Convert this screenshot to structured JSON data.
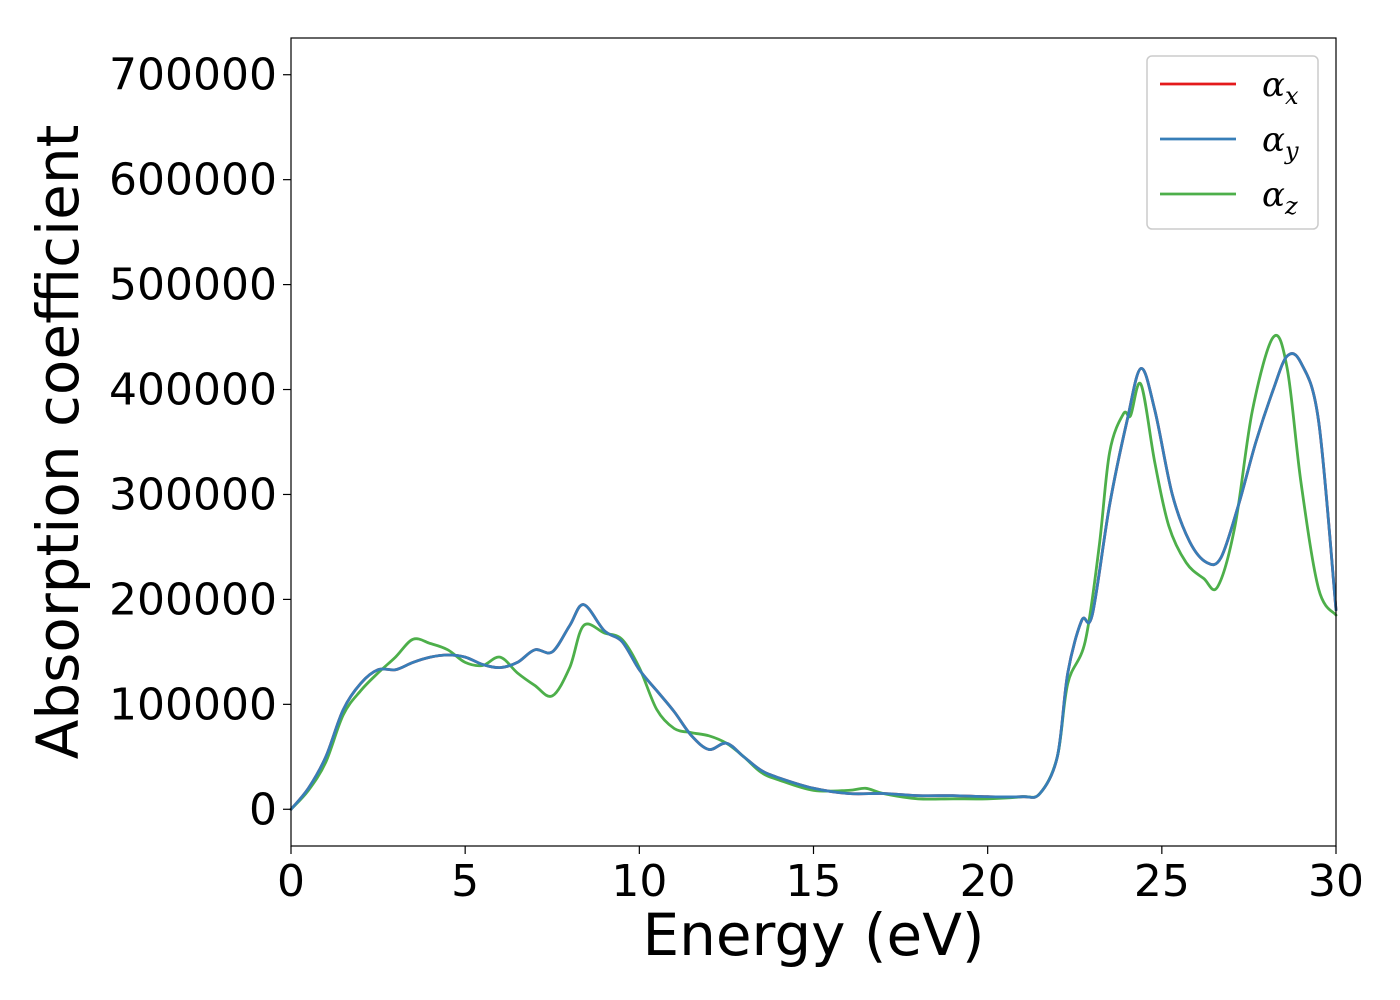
{
  "chart_data": {
    "type": "line",
    "title": "",
    "xlabel": "Energy (eV)",
    "ylabel": "Absorption coefficient",
    "xlim": [
      0,
      30
    ],
    "ylim": [
      -35000,
      735000
    ],
    "xticks": [
      0,
      5,
      10,
      15,
      20,
      25,
      30
    ],
    "xtick_labels": [
      "0",
      "5",
      "10",
      "15",
      "20",
      "25",
      "30"
    ],
    "yticks": [
      0,
      100000,
      200000,
      300000,
      400000,
      500000,
      600000,
      700000
    ],
    "ytick_labels": [
      "0",
      "100000",
      "200000",
      "300000",
      "400000",
      "500000",
      "600000",
      "700000"
    ],
    "grid": false,
    "legend_position": "top-right",
    "series": [
      {
        "name": "α",
        "subscript": "x",
        "color": "#e41a1c",
        "x": [
          0,
          0.5,
          1,
          1.5,
          2,
          2.5,
          3,
          3.5,
          4,
          4.5,
          5,
          5.5,
          6,
          6.5,
          7,
          7.5,
          8,
          8.4,
          9,
          9.5,
          10,
          10.5,
          11,
          11.5,
          12,
          12.5,
          13,
          13.5,
          14,
          15,
          16,
          17,
          18,
          19,
          20,
          21,
          21.5,
          22,
          22.3,
          22.7,
          23,
          23.5,
          24,
          24.4,
          24.8,
          25.3,
          25.8,
          26.3,
          26.7,
          27.2,
          27.7,
          28.2,
          28.6,
          29,
          29.5,
          30
        ],
        "y": [
          0,
          20000,
          50000,
          95000,
          120000,
          133000,
          133000,
          140000,
          145000,
          147000,
          145000,
          138000,
          135000,
          140000,
          152000,
          150000,
          175000,
          195000,
          170000,
          160000,
          133000,
          113000,
          93000,
          70000,
          57000,
          63000,
          50000,
          37000,
          30000,
          20000,
          15000,
          15000,
          13000,
          13000,
          12000,
          12000,
          15000,
          50000,
          130000,
          180000,
          185000,
          290000,
          370000,
          420000,
          380000,
          300000,
          255000,
          235000,
          240000,
          290000,
          350000,
          400000,
          432000,
          425000,
          370000,
          190000
        ]
      },
      {
        "name": "α",
        "subscript": "y",
        "color": "#377eb8",
        "x": [
          0,
          0.5,
          1,
          1.5,
          2,
          2.5,
          3,
          3.5,
          4,
          4.5,
          5,
          5.5,
          6,
          6.5,
          7,
          7.5,
          8,
          8.4,
          9,
          9.5,
          10,
          10.5,
          11,
          11.5,
          12,
          12.5,
          13,
          13.5,
          14,
          15,
          16,
          17,
          18,
          19,
          20,
          21,
          21.5,
          22,
          22.3,
          22.7,
          23,
          23.5,
          24,
          24.4,
          24.8,
          25.3,
          25.8,
          26.3,
          26.7,
          27.2,
          27.7,
          28.2,
          28.6,
          29,
          29.5,
          30
        ],
        "y": [
          0,
          20000,
          50000,
          95000,
          120000,
          133000,
          133000,
          140000,
          145000,
          147000,
          145000,
          138000,
          135000,
          140000,
          152000,
          150000,
          175000,
          195000,
          170000,
          160000,
          133000,
          113000,
          93000,
          70000,
          57000,
          63000,
          50000,
          37000,
          30000,
          20000,
          15000,
          15000,
          13000,
          13000,
          12000,
          12000,
          15000,
          50000,
          130000,
          180000,
          185000,
          290000,
          370000,
          420000,
          380000,
          300000,
          255000,
          235000,
          240000,
          290000,
          350000,
          400000,
          432000,
          425000,
          370000,
          190000
        ]
      },
      {
        "name": "α",
        "subscript": "z",
        "color": "#4daf4a",
        "x": [
          0,
          0.5,
          1,
          1.5,
          2,
          2.5,
          3,
          3.5,
          4,
          4.5,
          5,
          5.5,
          6,
          6.5,
          7,
          7.5,
          8,
          8.4,
          9,
          9.5,
          10,
          10.5,
          11,
          11.5,
          12,
          12.5,
          13,
          13.5,
          14,
          15,
          16,
          16.5,
          17,
          18,
          19,
          20,
          21,
          21.5,
          22,
          22.3,
          22.8,
          23.2,
          23.5,
          23.9,
          24.1,
          24.4,
          24.8,
          25.2,
          25.7,
          26.2,
          26.6,
          27.1,
          27.6,
          28.2,
          28.6,
          29,
          29.5,
          30
        ],
        "y": [
          0,
          18000,
          45000,
          90000,
          113000,
          130000,
          145000,
          162000,
          158000,
          152000,
          140000,
          137000,
          145000,
          130000,
          118000,
          108000,
          135000,
          175000,
          168000,
          162000,
          135000,
          95000,
          77000,
          73000,
          70000,
          63000,
          50000,
          35000,
          28000,
          18000,
          18000,
          20000,
          15000,
          10000,
          10000,
          10000,
          12000,
          15000,
          50000,
          120000,
          160000,
          250000,
          340000,
          377000,
          375000,
          405000,
          330000,
          270000,
          235000,
          220000,
          212000,
          270000,
          380000,
          450000,
          420000,
          310000,
          210000,
          185000
        ]
      }
    ]
  }
}
